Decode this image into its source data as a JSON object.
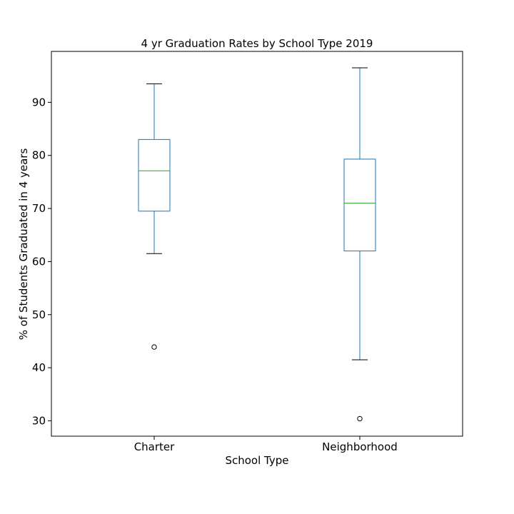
{
  "chart_data": {
    "type": "box",
    "title": "4 yr Graduation Rates by School Type 2019",
    "xlabel": "School Type",
    "ylabel": "% of Students Graduated in 4 years",
    "categories": [
      "Charter",
      "Neighborhood"
    ],
    "ylim": [
      27.1,
      99.6
    ],
    "yticks": [
      30,
      40,
      50,
      60,
      70,
      80,
      90
    ],
    "grid": false,
    "boxes": [
      {
        "category": "Charter",
        "whisker_low": 61.5,
        "q1": 69.5,
        "median": 77.1,
        "q3": 83.0,
        "whisker_high": 93.5,
        "outliers": [
          43.9
        ]
      },
      {
        "category": "Neighborhood",
        "whisker_low": 41.5,
        "q1": 62.0,
        "median": 71.0,
        "q3": 79.3,
        "whisker_high": 96.5,
        "outliers": [
          30.4
        ]
      }
    ],
    "colors": {
      "box": "#1f77b4",
      "median": "#2ca02c",
      "whisker_cap": "#000000",
      "outlier": "#000000",
      "frame": "#000000"
    }
  }
}
